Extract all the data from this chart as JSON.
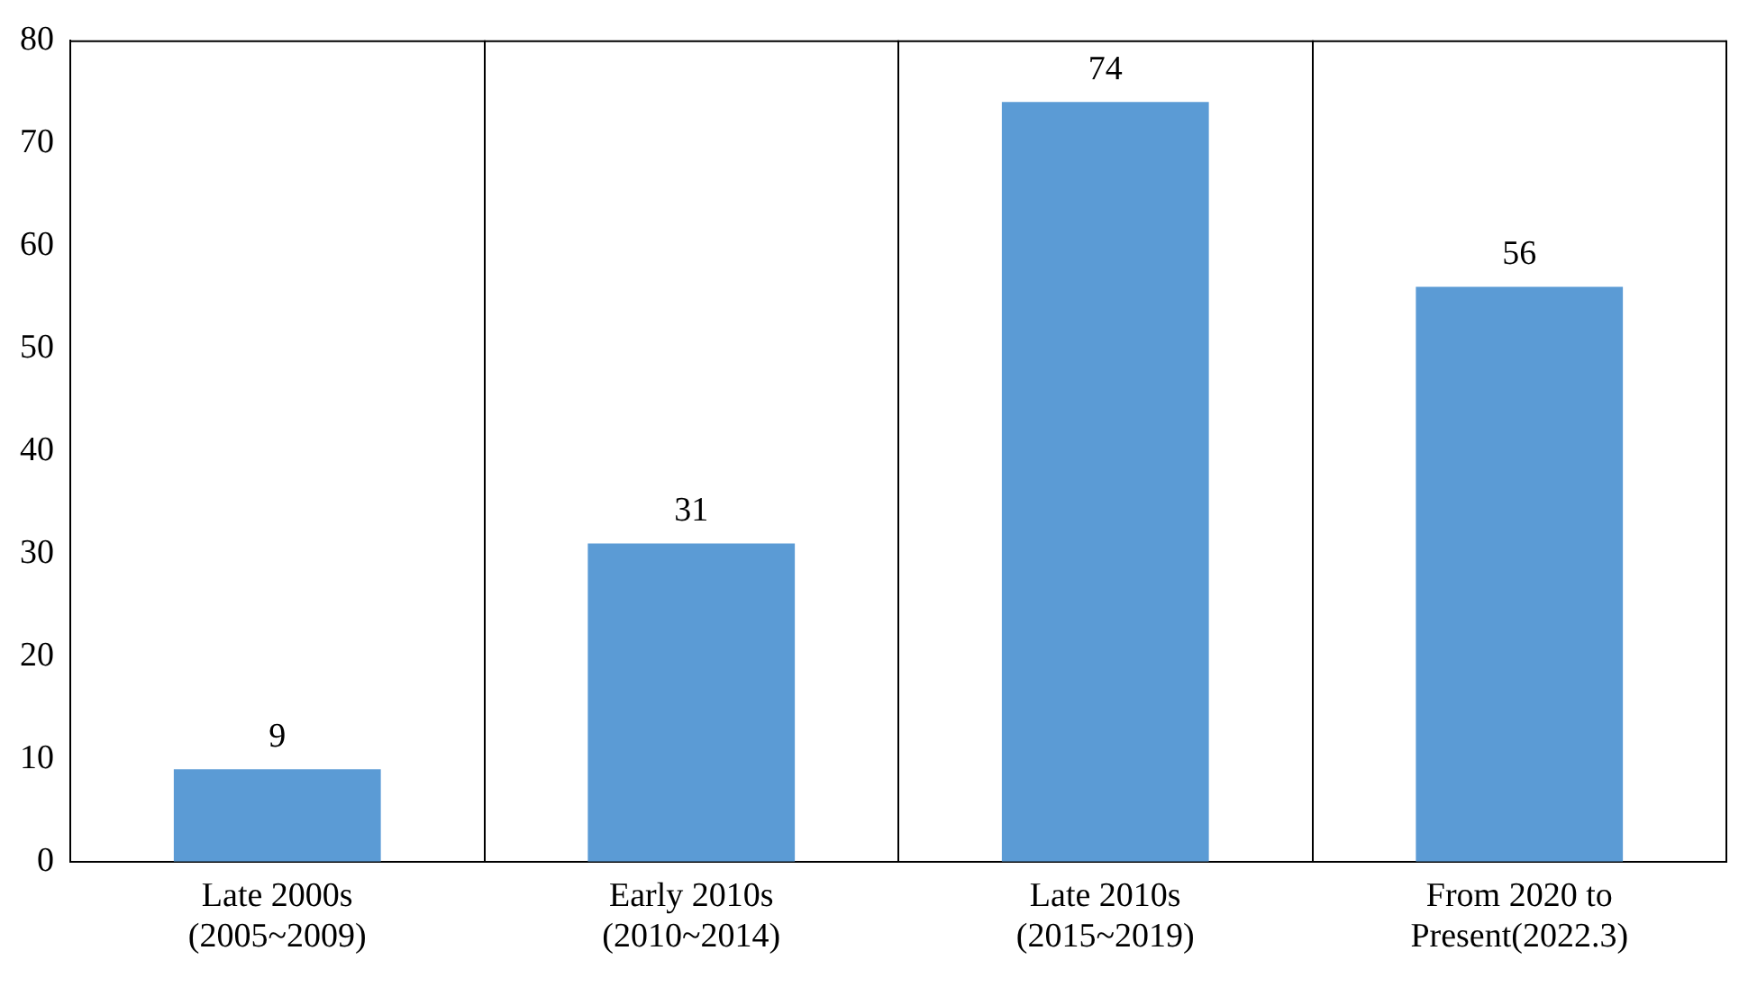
{
  "chart_data": {
    "type": "bar",
    "categories": [
      "Late 2000s\n(2005~2009)",
      "Early 2010s\n(2010~2014)",
      "Late 2010s\n(2015~2019)",
      "From 2020 to\nPresent(2022.3)"
    ],
    "values": [
      9,
      31,
      74,
      56
    ],
    "color": "#5b9bd5",
    "ylim": [
      0,
      80
    ],
    "yticks": [
      0,
      10,
      20,
      30,
      40,
      50,
      60,
      70,
      80
    ],
    "grid": "x",
    "data_labels": true
  }
}
